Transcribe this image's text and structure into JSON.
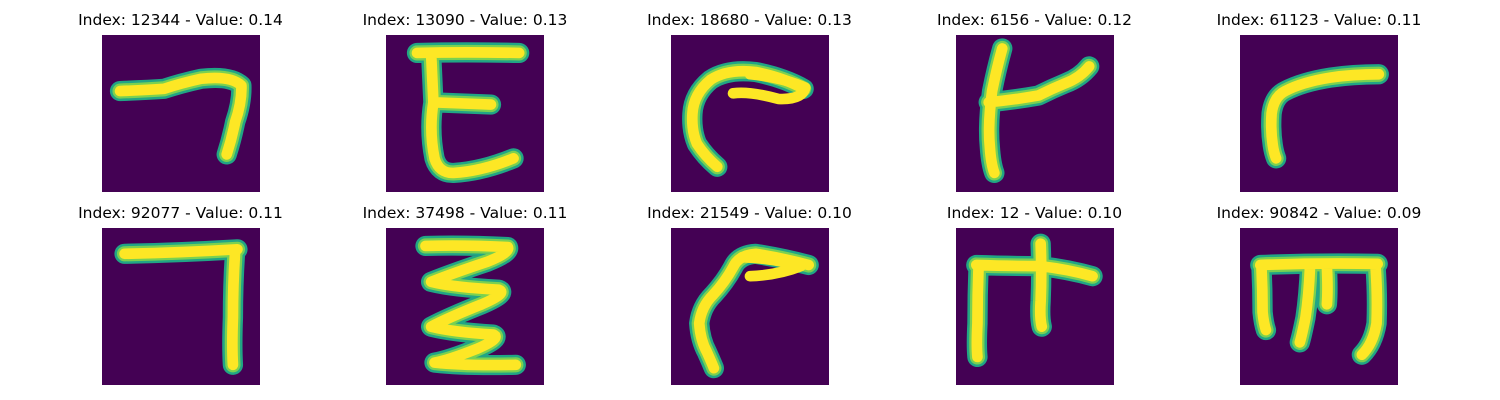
{
  "colors": {
    "background": "#440154",
    "edge": "#21a585",
    "mid": "#7ad151",
    "stroke": "#fde725"
  },
  "panels": [
    {
      "title": "Index: 12344 - Value: 0.14",
      "glyph": "glyph-a"
    },
    {
      "title": "Index: 13090 - Value: 0.13",
      "glyph": "glyph-b"
    },
    {
      "title": "Index: 18680 - Value: 0.13",
      "glyph": "glyph-c"
    },
    {
      "title": "Index: 6156 - Value: 0.12",
      "glyph": "glyph-d"
    },
    {
      "title": "Index: 61123 - Value: 0.11",
      "glyph": "glyph-e"
    },
    {
      "title": "Index: 92077 - Value: 0.11",
      "glyph": "glyph-f"
    },
    {
      "title": "Index: 37498 - Value: 0.11",
      "glyph": "glyph-g"
    },
    {
      "title": "Index: 21549 - Value: 0.10",
      "glyph": "glyph-h"
    },
    {
      "title": "Index: 12 - Value: 0.10",
      "glyph": "glyph-i"
    },
    {
      "title": "Index: 90842 - Value: 0.09",
      "glyph": "glyph-j"
    }
  ]
}
